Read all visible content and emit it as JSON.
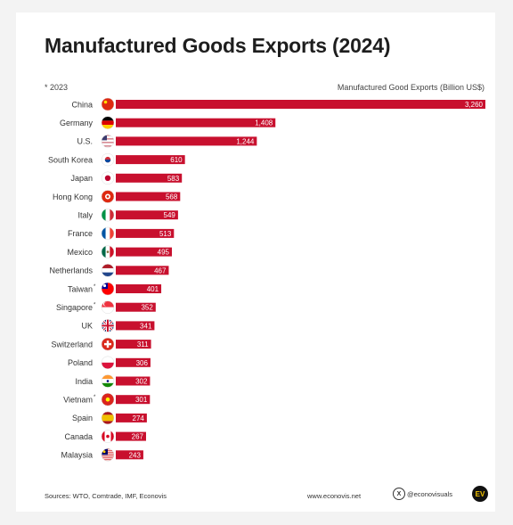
{
  "title": "Manufactured Goods Exports (2024)",
  "note": "* 2023",
  "unit_label": "Manufactured Good Exports (Billion US$)",
  "footer": {
    "sources": "Sources: WTO, Comtrade, IMF, Econovis",
    "website": "www.econovis.net",
    "social": "@econovisuals",
    "logo_text": "EV"
  },
  "colors": {
    "bar": "#c8102e",
    "bar_label": "#ffffff",
    "text": "#333333"
  },
  "chart_data": {
    "type": "bar",
    "orientation": "horizontal",
    "title": "Manufactured Goods Exports (2024)",
    "xlabel": "Manufactured Good Exports (Billion US$)",
    "ylabel": "",
    "xlim": [
      0,
      3260
    ],
    "grid": false,
    "categories": [
      "China",
      "Germany",
      "U.S.",
      "South Korea",
      "Japan",
      "Hong Kong",
      "Italy",
      "France",
      "Mexico",
      "Netherlands",
      "Taiwan*",
      "Singapore*",
      "UK",
      "Switzerland",
      "Poland",
      "India",
      "Vietnam*",
      "Spain",
      "Canada",
      "Malaysia"
    ],
    "values": [
      3260,
      1408,
      1244,
      610,
      583,
      568,
      549,
      513,
      495,
      467,
      401,
      352,
      341,
      311,
      306,
      302,
      301,
      274,
      267,
      243
    ],
    "value_labels": [
      "3,260",
      "1,408",
      "1,244",
      "610",
      "583",
      "568",
      "549",
      "513",
      "495",
      "467",
      "401",
      "352",
      "341",
      "311",
      "306",
      "302",
      "301",
      "274",
      "267",
      "243"
    ],
    "flag_icons": [
      "china-flag-icon",
      "germany-flag-icon",
      "usa-flag-icon",
      "south-korea-flag-icon",
      "japan-flag-icon",
      "hong-kong-flag-icon",
      "italy-flag-icon",
      "france-flag-icon",
      "mexico-flag-icon",
      "netherlands-flag-icon",
      "taiwan-flag-icon",
      "singapore-flag-icon",
      "uk-flag-icon",
      "switzerland-flag-icon",
      "poland-flag-icon",
      "india-flag-icon",
      "vietnam-flag-icon",
      "spain-flag-icon",
      "canada-flag-icon",
      "malaysia-flag-icon"
    ]
  }
}
